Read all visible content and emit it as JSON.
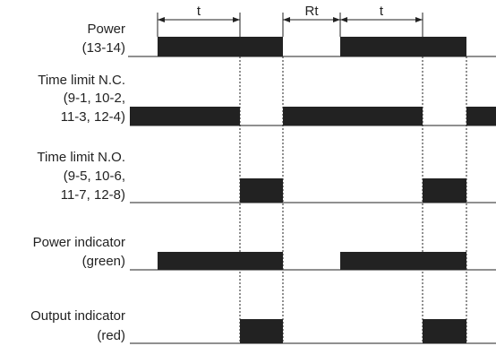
{
  "rows": [
    {
      "id": "power",
      "lines": [
        "Power",
        "(13-14)"
      ]
    },
    {
      "id": "nc",
      "lines": [
        "Time limit N.C.",
        "(9-1, 10-2,",
        "11-3, 12-4)"
      ]
    },
    {
      "id": "no",
      "lines": [
        "Time limit N.O.",
        "(9-5, 10-6,",
        "11-7, 12-8)"
      ]
    },
    {
      "id": "power-led",
      "lines": [
        "Power indicator",
        "(green)"
      ]
    },
    {
      "id": "output-led",
      "lines": [
        "Output indicator",
        "(red)"
      ]
    }
  ],
  "dimensions": {
    "t1": "t",
    "rt": "Rt",
    "t2": "t"
  }
}
